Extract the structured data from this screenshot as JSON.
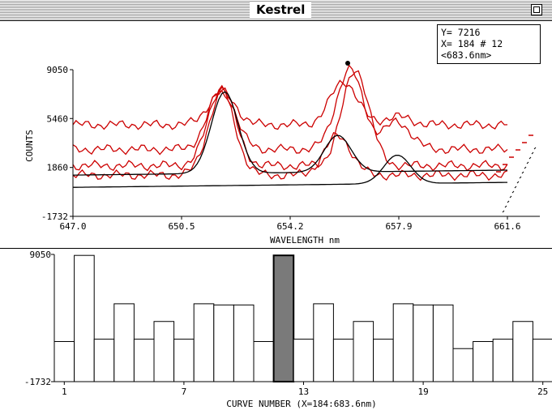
{
  "window": {
    "title": "Kestrel"
  },
  "readout": {
    "y_line": "Y= 7216",
    "x_line": "X= 184 # 12",
    "wl_line": "<683.6nm>"
  },
  "colors": {
    "red_curves": "#cc0000",
    "black_curves": "#000000",
    "selected_bar": "#7a7a7a"
  },
  "icons": {
    "zoom": "zoom-box-icon",
    "marker": "cursor-marker-icon"
  },
  "chart_data": [
    {
      "type": "line",
      "title": "",
      "xlabel": "WAVELENGTH nm",
      "ylabel": "COUNTS",
      "x_ticks": [
        "647.0",
        "650.5",
        "654.2",
        "657.9",
        "661.6"
      ],
      "y_ticks": [
        "9050",
        "5460",
        "1860",
        "-1732"
      ],
      "ylim": [
        -1732,
        9050
      ],
      "xlim": [
        647.0,
        661.6
      ],
      "note_series": "stacked waterfall of spectra; red = previous curves, black = current/fitted",
      "series": [
        {
          "color": "#cc0000",
          "peaks": [
            [
              652.0,
              7400
            ],
            [
              656.1,
              8200
            ],
            [
              657.9,
              5600
            ]
          ],
          "baseline": 5000
        },
        {
          "color": "#cc0000",
          "peaks": [
            [
              652.0,
              7600
            ],
            [
              656.3,
              9050
            ],
            [
              657.9,
              5200
            ]
          ],
          "baseline": 3200
        },
        {
          "color": "#cc0000",
          "peaks": [
            [
              652.0,
              7800
            ],
            [
              656.5,
              9050
            ]
          ],
          "baseline": 2000
        },
        {
          "color": "#cc0000",
          "peaks": [
            [
              652.0,
              7300
            ],
            [
              655.9,
              4200
            ]
          ],
          "baseline": 1300
        },
        {
          "color": "#000000",
          "peaks": [
            [
              652.1,
              7300
            ],
            [
              655.9,
              4000
            ]
          ],
          "baseline": 1300
        },
        {
          "color": "#000000",
          "peaks": [
            [
              657.9,
              2500
            ]
          ],
          "baseline": 400
        }
      ]
    },
    {
      "type": "bar",
      "title": "",
      "xlabel": "CURVE NUMBER (X=184:683.6nm)",
      "ylabel": "",
      "x_ticks": [
        "1",
        "7",
        "13",
        "19",
        "25"
      ],
      "y_ticks": [
        "9050",
        "-1732"
      ],
      "ylim": [
        -1732,
        9050
      ],
      "categories": [
        1,
        2,
        3,
        4,
        5,
        6,
        7,
        8,
        9,
        10,
        11,
        12,
        13,
        14,
        15,
        16,
        17,
        18,
        19,
        20,
        21,
        22,
        23,
        24,
        25
      ],
      "values": [
        0,
        7300,
        200,
        3200,
        200,
        1700,
        200,
        3200,
        3100,
        3100,
        0,
        7300,
        200,
        3200,
        200,
        1700,
        200,
        3200,
        3100,
        3100,
        -600,
        0,
        200,
        1700,
        200
      ],
      "selected_index": 11
    }
  ]
}
